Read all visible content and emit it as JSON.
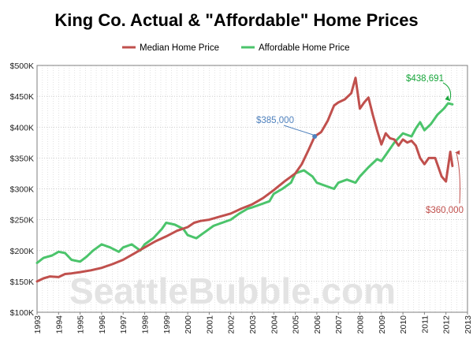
{
  "chart_data": {
    "type": "line",
    "title": "King Co. Actual & \"Affordable\" Home Prices",
    "watermark": "SeattleBubble.com",
    "legend_position": "top-center",
    "grid": true,
    "xlim": [
      1993,
      2013
    ],
    "ylim": [
      100000,
      500000
    ],
    "x_ticks": [
      1993,
      1994,
      1995,
      1996,
      1997,
      1998,
      1999,
      2000,
      2001,
      2002,
      2003,
      2004,
      2005,
      2006,
      2007,
      2008,
      2009,
      2010,
      2011,
      2012,
      2013
    ],
    "x_tick_labels": [
      "1993",
      "1994",
      "1995",
      "1996",
      "1997",
      "1998",
      "1999",
      "2000",
      "2001",
      "2002",
      "2003",
      "2004",
      "2005",
      "2006",
      "2007",
      "2008",
      "2009",
      "2010",
      "2011",
      "2012",
      "2013"
    ],
    "y_ticks": [
      100000,
      150000,
      200000,
      250000,
      300000,
      350000,
      400000,
      450000,
      500000
    ],
    "y_tick_labels": [
      "$100K",
      "$150K",
      "$200K",
      "$250K",
      "$300K",
      "$350K",
      "$400K",
      "$450K",
      "$500K"
    ],
    "series": [
      {
        "name": "Median Home Price",
        "color": "#c0504d",
        "x": [
          1993.0,
          1993.3,
          1993.6,
          1994.0,
          1994.3,
          1994.6,
          1995.0,
          1995.5,
          1996.0,
          1996.5,
          1997.0,
          1997.5,
          1998.0,
          1998.5,
          1999.0,
          1999.5,
          2000.0,
          2000.3,
          2000.6,
          2001.0,
          2001.5,
          2002.0,
          2002.5,
          2003.0,
          2003.5,
          2004.0,
          2004.5,
          2005.0,
          2005.3,
          2005.6,
          2005.9,
          2006.2,
          2006.5,
          2006.8,
          2007.0,
          2007.3,
          2007.6,
          2007.8,
          2008.0,
          2008.2,
          2008.4,
          2008.6,
          2008.8,
          2009.0,
          2009.2,
          2009.4,
          2009.6,
          2009.8,
          2010.0,
          2010.2,
          2010.4,
          2010.6,
          2010.8,
          2011.0,
          2011.2,
          2011.5,
          2011.8,
          2012.0,
          2012.2,
          2012.3
        ],
        "y": [
          150000,
          155000,
          158000,
          157000,
          162000,
          163000,
          165000,
          168000,
          172000,
          178000,
          185000,
          195000,
          205000,
          215000,
          223000,
          232000,
          238000,
          245000,
          248000,
          250000,
          255000,
          260000,
          268000,
          275000,
          285000,
          298000,
          312000,
          325000,
          340000,
          362000,
          385000,
          392000,
          410000,
          435000,
          440000,
          445000,
          455000,
          480000,
          430000,
          440000,
          448000,
          420000,
          395000,
          372000,
          390000,
          382000,
          380000,
          370000,
          380000,
          375000,
          378000,
          370000,
          350000,
          340000,
          350000,
          350000,
          320000,
          312000,
          360000,
          337000
        ]
      },
      {
        "name": "Affordable Home Price",
        "color": "#4bc46b",
        "x": [
          1993.0,
          1993.3,
          1993.7,
          1994.0,
          1994.3,
          1994.6,
          1995.0,
          1995.3,
          1995.6,
          1996.0,
          1996.4,
          1996.8,
          1997.0,
          1997.4,
          1997.8,
          1998.0,
          1998.4,
          1998.8,
          1999.0,
          1999.4,
          1999.8,
          2000.0,
          2000.4,
          2000.8,
          2001.2,
          2001.6,
          2002.0,
          2002.4,
          2002.8,
          2003.0,
          2003.4,
          2003.8,
          2004.0,
          2004.4,
          2004.8,
          2005.0,
          2005.4,
          2005.8,
          2006.0,
          2006.4,
          2006.8,
          2007.0,
          2007.4,
          2007.8,
          2008.0,
          2008.4,
          2008.8,
          2009.0,
          2009.2,
          2009.6,
          2010.0,
          2010.4,
          2010.6,
          2010.8,
          2011.0,
          2011.3,
          2011.6,
          2011.9,
          2012.1,
          2012.3
        ],
        "y": [
          180000,
          188000,
          192000,
          198000,
          196000,
          185000,
          182000,
          190000,
          200000,
          210000,
          205000,
          198000,
          205000,
          210000,
          200000,
          210000,
          220000,
          235000,
          245000,
          242000,
          235000,
          225000,
          220000,
          230000,
          240000,
          245000,
          250000,
          260000,
          268000,
          270000,
          275000,
          280000,
          292000,
          300000,
          310000,
          325000,
          330000,
          320000,
          310000,
          305000,
          300000,
          310000,
          315000,
          310000,
          320000,
          335000,
          348000,
          345000,
          355000,
          375000,
          390000,
          385000,
          398000,
          408000,
          395000,
          405000,
          420000,
          430000,
          438691,
          437000
        ]
      }
    ],
    "annotations": [
      {
        "text": "$385,000",
        "x": 2005.9,
        "y": 385000,
        "color": "#4f81bd"
      },
      {
        "text": "$438,691",
        "x": 2012.1,
        "y": 438691,
        "color": "#18a63b"
      },
      {
        "text": "$360,000",
        "x": 2012.2,
        "y": 360000,
        "color": "#c0504d"
      }
    ]
  }
}
